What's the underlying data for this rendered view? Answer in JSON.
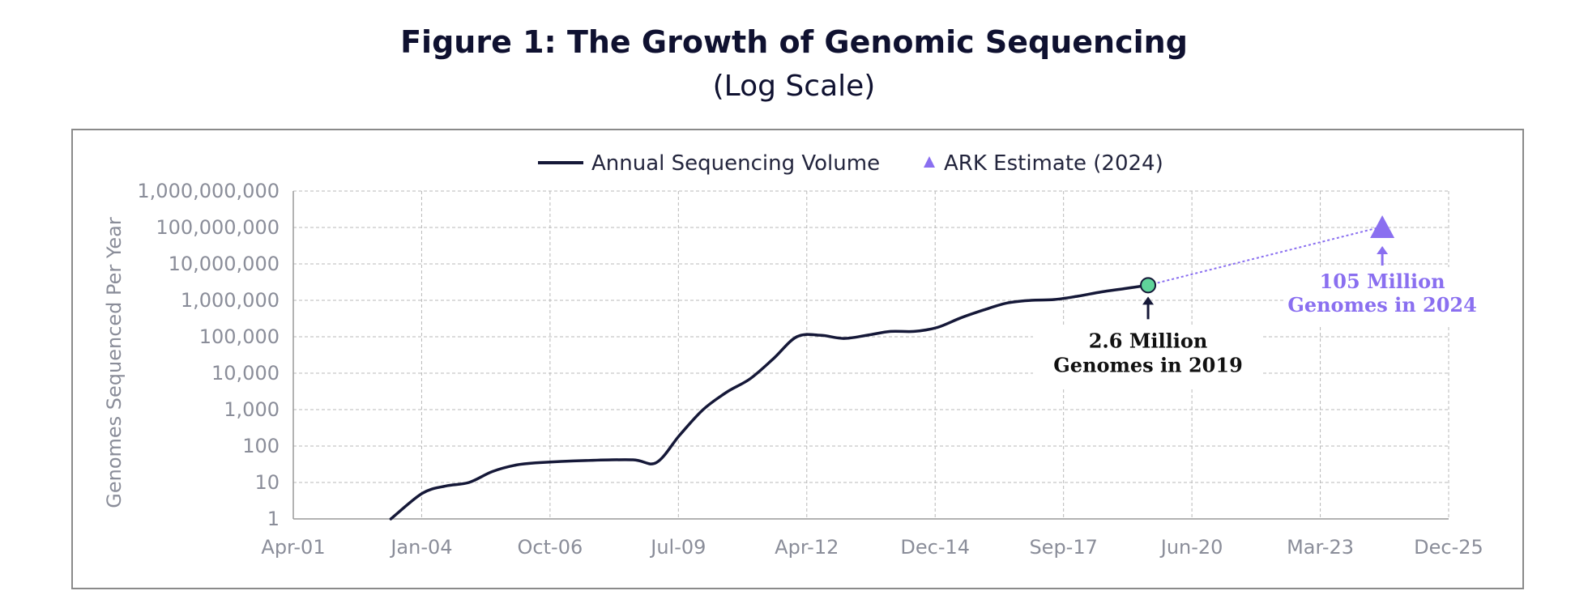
{
  "title": "Figure 1: The Growth of Genomic Sequencing",
  "subtitle": "(Log Scale)",
  "colors": {
    "line": "#151838",
    "estimate": "#8a6ff0",
    "point_2019": "#5fd39a",
    "text": "#0f1130",
    "axis_text": "#8a8d99"
  },
  "chart_data": {
    "type": "line",
    "y_scale": "log",
    "ylabel": "Genomes Sequenced Per Year",
    "ylim": [
      1,
      1000000000
    ],
    "xlim": [
      "2001-04",
      "2025-12"
    ],
    "grid": true,
    "legend_position": "top",
    "x_ticks": [
      "Apr-01",
      "Jan-04",
      "Oct-06",
      "Jul-09",
      "Apr-12",
      "Dec-14",
      "Sep-17",
      "Jun-20",
      "Mar-23",
      "Dec-25"
    ],
    "y_ticks": [
      "1",
      "10",
      "100",
      "1,000",
      "10,000",
      "100,000",
      "1,000,000",
      "10,000,000",
      "100,000,000",
      "1,000,000,000"
    ],
    "series": [
      {
        "name": "Annual Sequencing Volume",
        "x": [
          "2003-05",
          "2004-01",
          "2004-07",
          "2005-01",
          "2005-07",
          "2006-01",
          "2006-07",
          "2007-07",
          "2008-07",
          "2009-01",
          "2009-07",
          "2010-01",
          "2010-07",
          "2011-01",
          "2011-07",
          "2012-01",
          "2012-07",
          "2013-01",
          "2013-07",
          "2014-01",
          "2014-07",
          "2015-01",
          "2015-07",
          "2016-01",
          "2016-07",
          "2017-01",
          "2017-07",
          "2018-01",
          "2018-07",
          "2019-01",
          "2019-07"
        ],
        "y": [
          1,
          5,
          8,
          10,
          20,
          30,
          35,
          40,
          42,
          35,
          200,
          1000,
          3000,
          7000,
          25000,
          100000,
          110000,
          90000,
          110000,
          140000,
          140000,
          180000,
          330000,
          550000,
          850000,
          1000000,
          1050000,
          1300000,
          1700000,
          2100000,
          2600000
        ]
      },
      {
        "name": "ARK Estimate (2024)",
        "x": [
          "2024-07"
        ],
        "y": [
          105000000
        ]
      }
    ],
    "annotations": [
      {
        "line1": "2.6 Million",
        "line2": "Genomes in 2019",
        "x": "2019-07",
        "y": 2600000
      },
      {
        "line1": "105 Million",
        "line2": "Genomes in 2024",
        "x": "2024-07",
        "y": 105000000
      }
    ]
  }
}
